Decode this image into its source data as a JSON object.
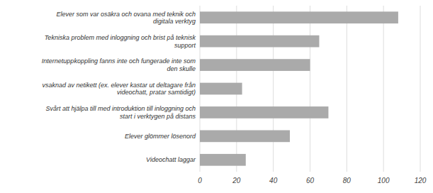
{
  "chart_data": {
    "type": "bar",
    "orientation": "horizontal",
    "categories": [
      "Videochatt laggar",
      "Elever glömmer lösenord",
      "Svårt att hjälpa till med introduktion till inloggning och\nstart i verktygen på distans",
      "vsaknad av netikett (ex. elever kastar ut deltagare från\nvideochatt, pratar samtidigt)",
      "Internetuppkoppling fanns inte och fungerade inte som\nden skulle",
      "Tekniska problem med inloggning och brist på teknisk\nsupport",
      "Elever som var osäkra och ovana med teknik och\ndigitala verktyg"
    ],
    "values": [
      25,
      49,
      70,
      23,
      60,
      65,
      108
    ],
    "color": "#aaaaaa",
    "xlim": [
      0,
      120
    ],
    "xticks": [
      0,
      20,
      40,
      60,
      80,
      100,
      120
    ],
    "grid": true
  }
}
